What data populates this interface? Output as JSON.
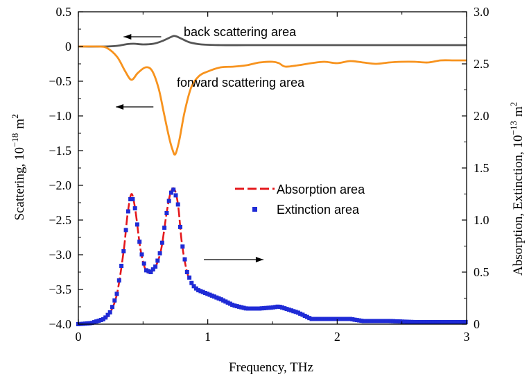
{
  "chart_data": {
    "type": "line",
    "x_axis": {
      "label": "Frequency, THz",
      "range": [
        0,
        3
      ],
      "ticks": [
        0,
        1,
        2,
        3
      ],
      "tick_labels": [
        "0",
        "1",
        "2",
        "3"
      ]
    },
    "y_left": {
      "label_main": "Scattering, 10",
      "label_exp": "−18",
      "label_unit": "m",
      "label_unit_exp": "2",
      "range": [
        -4.0,
        0.5
      ],
      "ticks": [
        0.5,
        0,
        -0.5,
        -1.0,
        -1.5,
        -2.0,
        -2.5,
        -3.0,
        -3.5,
        -4.0
      ],
      "tick_labels": [
        "0.5",
        "0",
        "−0.5",
        "−1.0",
        "−1.5",
        "−2.0",
        "−2.5",
        "−3.0",
        "−3.5",
        "−4.0"
      ]
    },
    "y_right": {
      "label_main": "Absorption, Extinction, 10",
      "label_exp": "−13",
      "label_unit": "m",
      "label_unit_exp": "2",
      "range": [
        0,
        3.0
      ],
      "ticks": [
        0,
        0.5,
        1.0,
        1.5,
        2.0,
        2.5,
        3.0
      ],
      "tick_labels": [
        "0",
        "0.5",
        "1.0",
        "1.5",
        "2.0",
        "2.5",
        "3.0"
      ]
    },
    "annotations": {
      "back": "back scattering area",
      "forward": "forward scattering area"
    },
    "legend": {
      "placement": "center-right",
      "absorption": "Absorption area",
      "extinction": "Extinction area"
    },
    "series": [
      {
        "name": "back scattering area",
        "axis": "left",
        "color": "#555555",
        "style": "solid",
        "x": [
          0,
          0.2,
          0.3,
          0.38,
          0.43,
          0.5,
          0.58,
          0.65,
          0.72,
          0.75,
          0.8,
          0.86,
          0.95,
          1.1,
          1.3,
          1.6,
          2.0,
          2.4,
          2.8,
          3.0
        ],
        "y": [
          0,
          0,
          0.01,
          0.035,
          0.04,
          0.03,
          0.04,
          0.08,
          0.14,
          0.15,
          0.11,
          0.06,
          0.03,
          0.02,
          0.02,
          0.02,
          0.02,
          0.02,
          0.02,
          0.02
        ]
      },
      {
        "name": "forward scattering area",
        "axis": "left",
        "color": "#f7931e",
        "style": "solid",
        "x": [
          0,
          0.15,
          0.22,
          0.3,
          0.36,
          0.41,
          0.46,
          0.52,
          0.57,
          0.62,
          0.66,
          0.7,
          0.73,
          0.75,
          0.78,
          0.82,
          0.87,
          0.93,
          1.0,
          1.1,
          1.2,
          1.3,
          1.4,
          1.5,
          1.55,
          1.6,
          1.7,
          1.8,
          1.9,
          2.0,
          2.1,
          2.2,
          2.3,
          2.4,
          2.5,
          2.6,
          2.7,
          2.8,
          2.9,
          3.0
        ],
        "y": [
          0,
          0,
          -0.02,
          -0.15,
          -0.35,
          -0.48,
          -0.38,
          -0.3,
          -0.35,
          -0.6,
          -0.95,
          -1.3,
          -1.5,
          -1.55,
          -1.35,
          -0.95,
          -0.6,
          -0.43,
          -0.36,
          -0.3,
          -0.29,
          -0.27,
          -0.23,
          -0.22,
          -0.24,
          -0.29,
          -0.27,
          -0.24,
          -0.22,
          -0.24,
          -0.21,
          -0.23,
          -0.25,
          -0.23,
          -0.22,
          -0.22,
          -0.23,
          -0.2,
          -0.2,
          -0.2
        ]
      },
      {
        "name": "Absorption area",
        "axis": "right",
        "color": "#e4181c",
        "style": "dashed",
        "x": [
          0,
          0.1,
          0.2,
          0.25,
          0.3,
          0.35,
          0.38,
          0.41,
          0.44,
          0.48,
          0.52,
          0.56,
          0.6,
          0.64,
          0.68,
          0.71,
          0.74,
          0.77,
          0.8,
          0.84,
          0.88,
          0.92,
          1.0,
          1.1,
          1.2,
          1.3,
          1.4,
          1.5,
          1.55,
          1.6,
          1.7,
          1.8,
          2.0,
          2.1,
          2.2,
          2.4,
          2.6,
          2.8,
          3.0
        ],
        "y": [
          0,
          0.01,
          0.05,
          0.12,
          0.3,
          0.7,
          1.05,
          1.25,
          1.1,
          0.72,
          0.52,
          0.5,
          0.56,
          0.72,
          1.05,
          1.25,
          1.3,
          1.15,
          0.78,
          0.5,
          0.38,
          0.33,
          0.29,
          0.24,
          0.18,
          0.15,
          0.15,
          0.16,
          0.17,
          0.15,
          0.11,
          0.05,
          0.05,
          0.05,
          0.03,
          0.03,
          0.02,
          0.02,
          0.02
        ]
      },
      {
        "name": "Extinction area",
        "axis": "right",
        "color": "#1f2bd6",
        "style": "markers",
        "x": [
          0,
          0.1,
          0.2,
          0.25,
          0.3,
          0.35,
          0.38,
          0.41,
          0.44,
          0.48,
          0.52,
          0.56,
          0.6,
          0.64,
          0.68,
          0.71,
          0.74,
          0.77,
          0.8,
          0.84,
          0.88,
          0.92,
          1.0,
          1.1,
          1.2,
          1.3,
          1.4,
          1.5,
          1.55,
          1.6,
          1.7,
          1.8,
          2.0,
          2.1,
          2.2,
          2.4,
          2.6,
          2.8,
          3.0
        ],
        "y": [
          0,
          0.01,
          0.05,
          0.12,
          0.3,
          0.7,
          1.05,
          1.25,
          1.1,
          0.72,
          0.52,
          0.5,
          0.56,
          0.72,
          1.05,
          1.25,
          1.3,
          1.15,
          0.78,
          0.5,
          0.38,
          0.33,
          0.29,
          0.24,
          0.18,
          0.15,
          0.15,
          0.16,
          0.17,
          0.15,
          0.11,
          0.05,
          0.05,
          0.05,
          0.03,
          0.03,
          0.02,
          0.02,
          0.02
        ]
      }
    ],
    "arrows": [
      {
        "axis": "left",
        "from": [
          0.64,
          0.14
        ],
        "to": [
          0.35,
          0.14
        ],
        "note": "points to left axis"
      },
      {
        "axis": "left",
        "from": [
          0.58,
          -0.87
        ],
        "to": [
          0.29,
          -0.87
        ],
        "note": "points to left axis"
      },
      {
        "axis": "right",
        "from": [
          0.97,
          0.62
        ],
        "to": [
          1.43,
          0.62
        ],
        "note": "points to right axis"
      }
    ]
  }
}
